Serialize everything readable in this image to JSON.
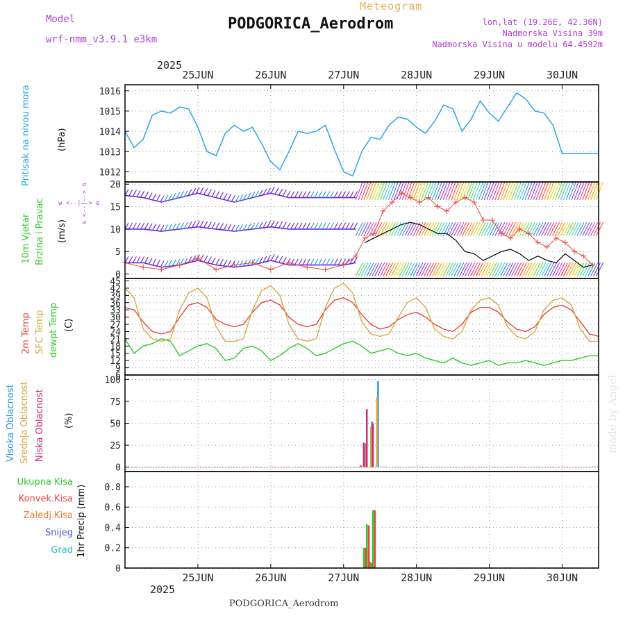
{
  "header": {
    "model_label": "Model",
    "model_name": "wrf-nmm_v3.9.1 e3km",
    "product": "Meteogram",
    "station": "PODGORICA_Aerodrom",
    "lonlat": "lon,lat (19.26E, 42.36N)",
    "elevation": "Nadmorska Visina 39m",
    "model_elevation": "Nadmorska Visina u modelu 64.4592m",
    "year": "2025",
    "footer_station": "PODGORICA_Aerodrom",
    "credit": "made by Angel"
  },
  "dates": [
    "25JUN",
    "26JUN",
    "27JUN",
    "28JUN",
    "29JUN",
    "30JUN"
  ],
  "labels": {
    "pressure": "Pritisak na nivou mora",
    "pressure_unit": "(hPa)",
    "wind1": "10m Vjetar",
    "wind2": "Brzina i Pravac",
    "wind_unit": "(m/s)",
    "compass": "w <--|--> e",
    "compass_vert": "s <--|--> n",
    "temp1": "2m Temp",
    "temp2": "SFC Temp",
    "temp3": "dewpt Temp",
    "temp_unit": "(C)",
    "cloud1": "Visoka Oblacnost",
    "cloud2": "Srednja Oblacnost",
    "cloud3": "Niska Oblacnost",
    "cloud_unit": "(%)",
    "precip1": "Ukupna Kisa",
    "precip2": "Konvek.Kisa",
    "precip3": "Zaledj.Kisa",
    "precip4": "Snijeg",
    "precip5": "Grad",
    "precip_unit": "1hr Precip (mm)"
  },
  "colors": {
    "pressure": "#2aa6df",
    "temp2m": "#e8453c",
    "sfc": "#d8a742",
    "dewpt": "#2ec92e",
    "cloud_high": "#1e96e0",
    "cloud_mid": "#d8a742",
    "cloud_low": "#d6206f",
    "rain_total": "#2ec92e",
    "rain_conv": "#e8453c",
    "rain_frz": "#f07a30",
    "snow": "#5050e0",
    "hail": "#20c0c0",
    "model": "#b040d0",
    "wind_speed": "#000000",
    "gust": "#e8453c"
  },
  "chart_data": [
    {
      "type": "line",
      "title": "Pritisak na nivou mora",
      "ylabel": "(hPa)",
      "x_unit": "hours since 25JUN 00UTC",
      "ylim": [
        1011.5,
        1016.3
      ],
      "yticks": [
        1012,
        1013,
        1014,
        1015,
        1016
      ],
      "series": [
        {
          "name": "MSLP",
          "x": [
            -12,
            -9,
            -6,
            -3,
            0,
            3,
            6,
            9,
            12,
            15,
            18,
            21,
            24,
            27,
            30,
            33,
            36,
            39,
            42,
            45,
            48,
            51,
            54,
            57,
            60,
            63,
            66,
            69,
            72,
            75,
            78,
            81,
            84,
            87,
            90,
            93,
            96,
            99,
            102,
            105,
            108,
            111,
            114,
            117,
            120,
            123,
            126,
            129,
            132,
            135,
            138,
            141,
            144
          ],
          "values": [
            1014.0,
            1013.2,
            1013.6,
            1014.8,
            1015.0,
            1014.9,
            1015.2,
            1015.1,
            1014.2,
            1013.0,
            1012.8,
            1013.9,
            1014.3,
            1014.0,
            1014.2,
            1013.4,
            1012.5,
            1012.1,
            1013.0,
            1014.0,
            1013.9,
            1014.0,
            1014.3,
            1013.1,
            1012.0,
            1011.8,
            1013.0,
            1013.7,
            1013.6,
            1014.3,
            1014.7,
            1014.6,
            1014.2,
            1013.9,
            1014.5,
            1015.3,
            1015.1,
            1014.0,
            1014.6,
            1015.5,
            1014.9,
            1014.5,
            1015.2,
            1015.9,
            1015.6,
            1015.0,
            1014.9,
            1014.3,
            1012.9,
            1012.9,
            1012.9,
            1012.9,
            1012.9
          ]
        }
      ]
    },
    {
      "type": "line",
      "title": "10m Vjetar Brzina i Pravac",
      "ylabel": "(m/s)",
      "ylim": [
        -1,
        20.5
      ],
      "yticks": [
        0,
        5,
        10,
        15,
        20
      ],
      "series": [
        {
          "name": "wind speed",
          "x": [
            67,
            70,
            73,
            76,
            79,
            82,
            85,
            88,
            91,
            94,
            97,
            100,
            103,
            106,
            109,
            112,
            115,
            118,
            121,
            124,
            127,
            130,
            133,
            136,
            139,
            142
          ],
          "values": [
            7,
            8,
            9,
            10,
            11,
            11.5,
            11,
            10,
            9,
            9,
            7.5,
            5,
            4.5,
            3,
            4,
            5,
            5.5,
            4.5,
            3,
            4,
            3,
            2.5,
            4.5,
            3,
            1.5,
            2
          ]
        },
        {
          "name": "gust",
          "x": [
            -12,
            -6,
            0,
            6,
            12,
            18,
            24,
            30,
            36,
            42,
            48,
            54,
            60,
            64,
            67,
            70,
            73,
            76,
            79,
            82,
            85,
            88,
            91,
            94,
            97,
            100,
            103,
            106,
            109,
            112,
            115,
            118,
            121,
            124,
            127,
            130,
            133,
            136,
            139,
            142
          ],
          "values": [
            2.5,
            1.5,
            1,
            2,
            3.5,
            1,
            2,
            2.5,
            1,
            2.5,
            1.5,
            1,
            2,
            4,
            8,
            9,
            14,
            16,
            18,
            17,
            16,
            17,
            15,
            14,
            16,
            17,
            16,
            12,
            12,
            9,
            8,
            10,
            9,
            7,
            6,
            8,
            7,
            5,
            4,
            2
          ]
        },
        {
          "name": "direction row 1",
          "x": [
            -12,
            -6,
            0,
            6,
            12,
            18,
            24,
            30,
            36,
            42,
            48,
            54,
            60,
            64
          ],
          "values": [
            17.5,
            17,
            16,
            17,
            18,
            17,
            16,
            17,
            18,
            17,
            17,
            17,
            17,
            17
          ]
        },
        {
          "name": "direction row 2",
          "x": [
            -12,
            -6,
            0,
            6,
            12,
            18,
            24,
            30,
            36,
            42,
            48,
            54,
            60,
            64
          ],
          "values": [
            10,
            10,
            9.5,
            10,
            10.5,
            10,
            9.5,
            10,
            10.5,
            10,
            10,
            10,
            10,
            10
          ]
        },
        {
          "name": "direction row 3",
          "x": [
            -12,
            -6,
            0,
            6,
            12,
            18,
            24,
            30,
            36,
            42,
            48,
            54,
            60,
            64
          ],
          "values": [
            2.5,
            2.5,
            1.5,
            2,
            3,
            2,
            1.5,
            2,
            3,
            2,
            2,
            2,
            2,
            2.5
          ]
        }
      ]
    },
    {
      "type": "line",
      "title": "2m Temp / SFC Temp / dewpt Temp",
      "ylabel": "(C)",
      "ylim": [
        6,
        46
      ],
      "yticks": [
        6,
        9,
        12,
        15,
        18,
        21,
        24,
        27,
        30,
        33,
        36,
        39,
        42,
        45
      ],
      "series": [
        {
          "name": "2m Temp",
          "x": [
            -12,
            -9,
            -6,
            -3,
            0,
            3,
            6,
            9,
            12,
            15,
            18,
            21,
            24,
            27,
            30,
            33,
            36,
            39,
            42,
            45,
            48,
            51,
            54,
            57,
            60,
            63,
            66,
            69,
            72,
            75,
            78,
            81,
            84,
            87,
            90,
            93,
            96,
            99,
            102,
            105,
            108,
            111,
            114,
            117,
            120,
            123,
            126,
            129,
            132,
            135,
            138,
            141,
            144
          ],
          "values": [
            34,
            33,
            28,
            24,
            23,
            24,
            30,
            35,
            36,
            34,
            29,
            27,
            26,
            27,
            32,
            36,
            37,
            35,
            30,
            27,
            26,
            27,
            33,
            37,
            38,
            36,
            31,
            27,
            25,
            26,
            29,
            31,
            32,
            30,
            27,
            25,
            24,
            27,
            32,
            34,
            34,
            32,
            28,
            25,
            24,
            26,
            31,
            34,
            35,
            33,
            28,
            23,
            22
          ]
        },
        {
          "name": "SFC Temp",
          "x": [
            -12,
            -9,
            -6,
            -3,
            0,
            3,
            6,
            9,
            12,
            15,
            18,
            21,
            24,
            27,
            30,
            33,
            36,
            39,
            42,
            45,
            48,
            51,
            54,
            57,
            60,
            63,
            66,
            69,
            72,
            75,
            78,
            81,
            84,
            87,
            90,
            93,
            96,
            99,
            102,
            105,
            108,
            111,
            114,
            117,
            120,
            123,
            126,
            129,
            132,
            135,
            138,
            141,
            144
          ],
          "values": [
            42,
            38,
            25,
            21,
            20,
            21,
            33,
            40,
            42,
            38,
            26,
            20,
            20,
            21,
            33,
            41,
            43,
            39,
            27,
            21,
            20,
            21,
            34,
            42,
            44,
            40,
            28,
            23,
            22,
            23,
            30,
            36,
            38,
            34,
            25,
            22,
            21,
            24,
            33,
            37,
            38,
            35,
            26,
            22,
            21,
            24,
            33,
            37,
            38,
            35,
            25,
            20,
            20
          ]
        },
        {
          "name": "dewpt Temp",
          "x": [
            -12,
            -9,
            -6,
            -3,
            0,
            3,
            6,
            9,
            12,
            15,
            18,
            21,
            24,
            27,
            30,
            33,
            36,
            39,
            42,
            45,
            48,
            51,
            54,
            57,
            60,
            63,
            66,
            69,
            72,
            75,
            78,
            81,
            84,
            87,
            90,
            93,
            96,
            99,
            102,
            105,
            108,
            111,
            114,
            117,
            120,
            123,
            126,
            129,
            132,
            135,
            138,
            141,
            144
          ],
          "values": [
            21,
            15,
            18,
            19,
            21,
            20,
            14,
            16,
            18,
            19,
            17,
            12,
            13,
            17,
            18,
            16,
            12,
            14,
            17,
            19,
            17,
            14,
            15,
            17,
            19,
            20,
            18,
            15,
            16,
            17,
            15,
            14,
            15,
            13,
            12,
            11,
            13,
            11,
            10,
            11,
            12,
            10,
            11,
            11,
            12,
            11,
            10,
            11,
            12,
            12,
            13,
            14,
            14
          ]
        }
      ]
    },
    {
      "type": "bar",
      "title": "Oblacnost",
      "ylabel": "(%)",
      "ylim": [
        -5,
        105
      ],
      "yticks": [
        0,
        25,
        50,
        75,
        100
      ],
      "x_unit": "hours since 25JUN 00UTC",
      "series": [
        {
          "name": "Visoka Oblacnost",
          "x": [
            66,
            67,
            68,
            69,
            70,
            71,
            72
          ],
          "values": [
            0,
            27,
            0,
            52,
            0,
            98,
            0
          ]
        },
        {
          "name": "Srednja Oblacnost",
          "x": [
            66,
            67,
            68,
            69,
            70,
            71,
            72
          ],
          "values": [
            0,
            26,
            0,
            46,
            0,
            80,
            0
          ]
        },
        {
          "name": "Niska Oblacnost",
          "x": [
            66,
            67,
            68,
            69,
            70,
            71,
            72
          ],
          "values": [
            2,
            28,
            66,
            0,
            50,
            0,
            0
          ]
        }
      ]
    },
    {
      "type": "bar",
      "title": "1hr Precip",
      "ylabel": "(mm)",
      "ylim": [
        0,
        0.95
      ],
      "yticks": [
        0,
        0.2,
        0.4,
        0.6,
        0.8
      ],
      "x_unit": "hours since 25JUN 00UTC",
      "series": [
        {
          "name": "Ukupna Kisa",
          "x": [
            67,
            68,
            69,
            70
          ],
          "values": [
            0.2,
            0.43,
            0.06,
            0.57
          ]
        },
        {
          "name": "Konvek.Kisa",
          "x": [
            67,
            68,
            69,
            70
          ],
          "values": [
            0.2,
            0.42,
            0.05,
            0.57
          ]
        }
      ]
    }
  ]
}
